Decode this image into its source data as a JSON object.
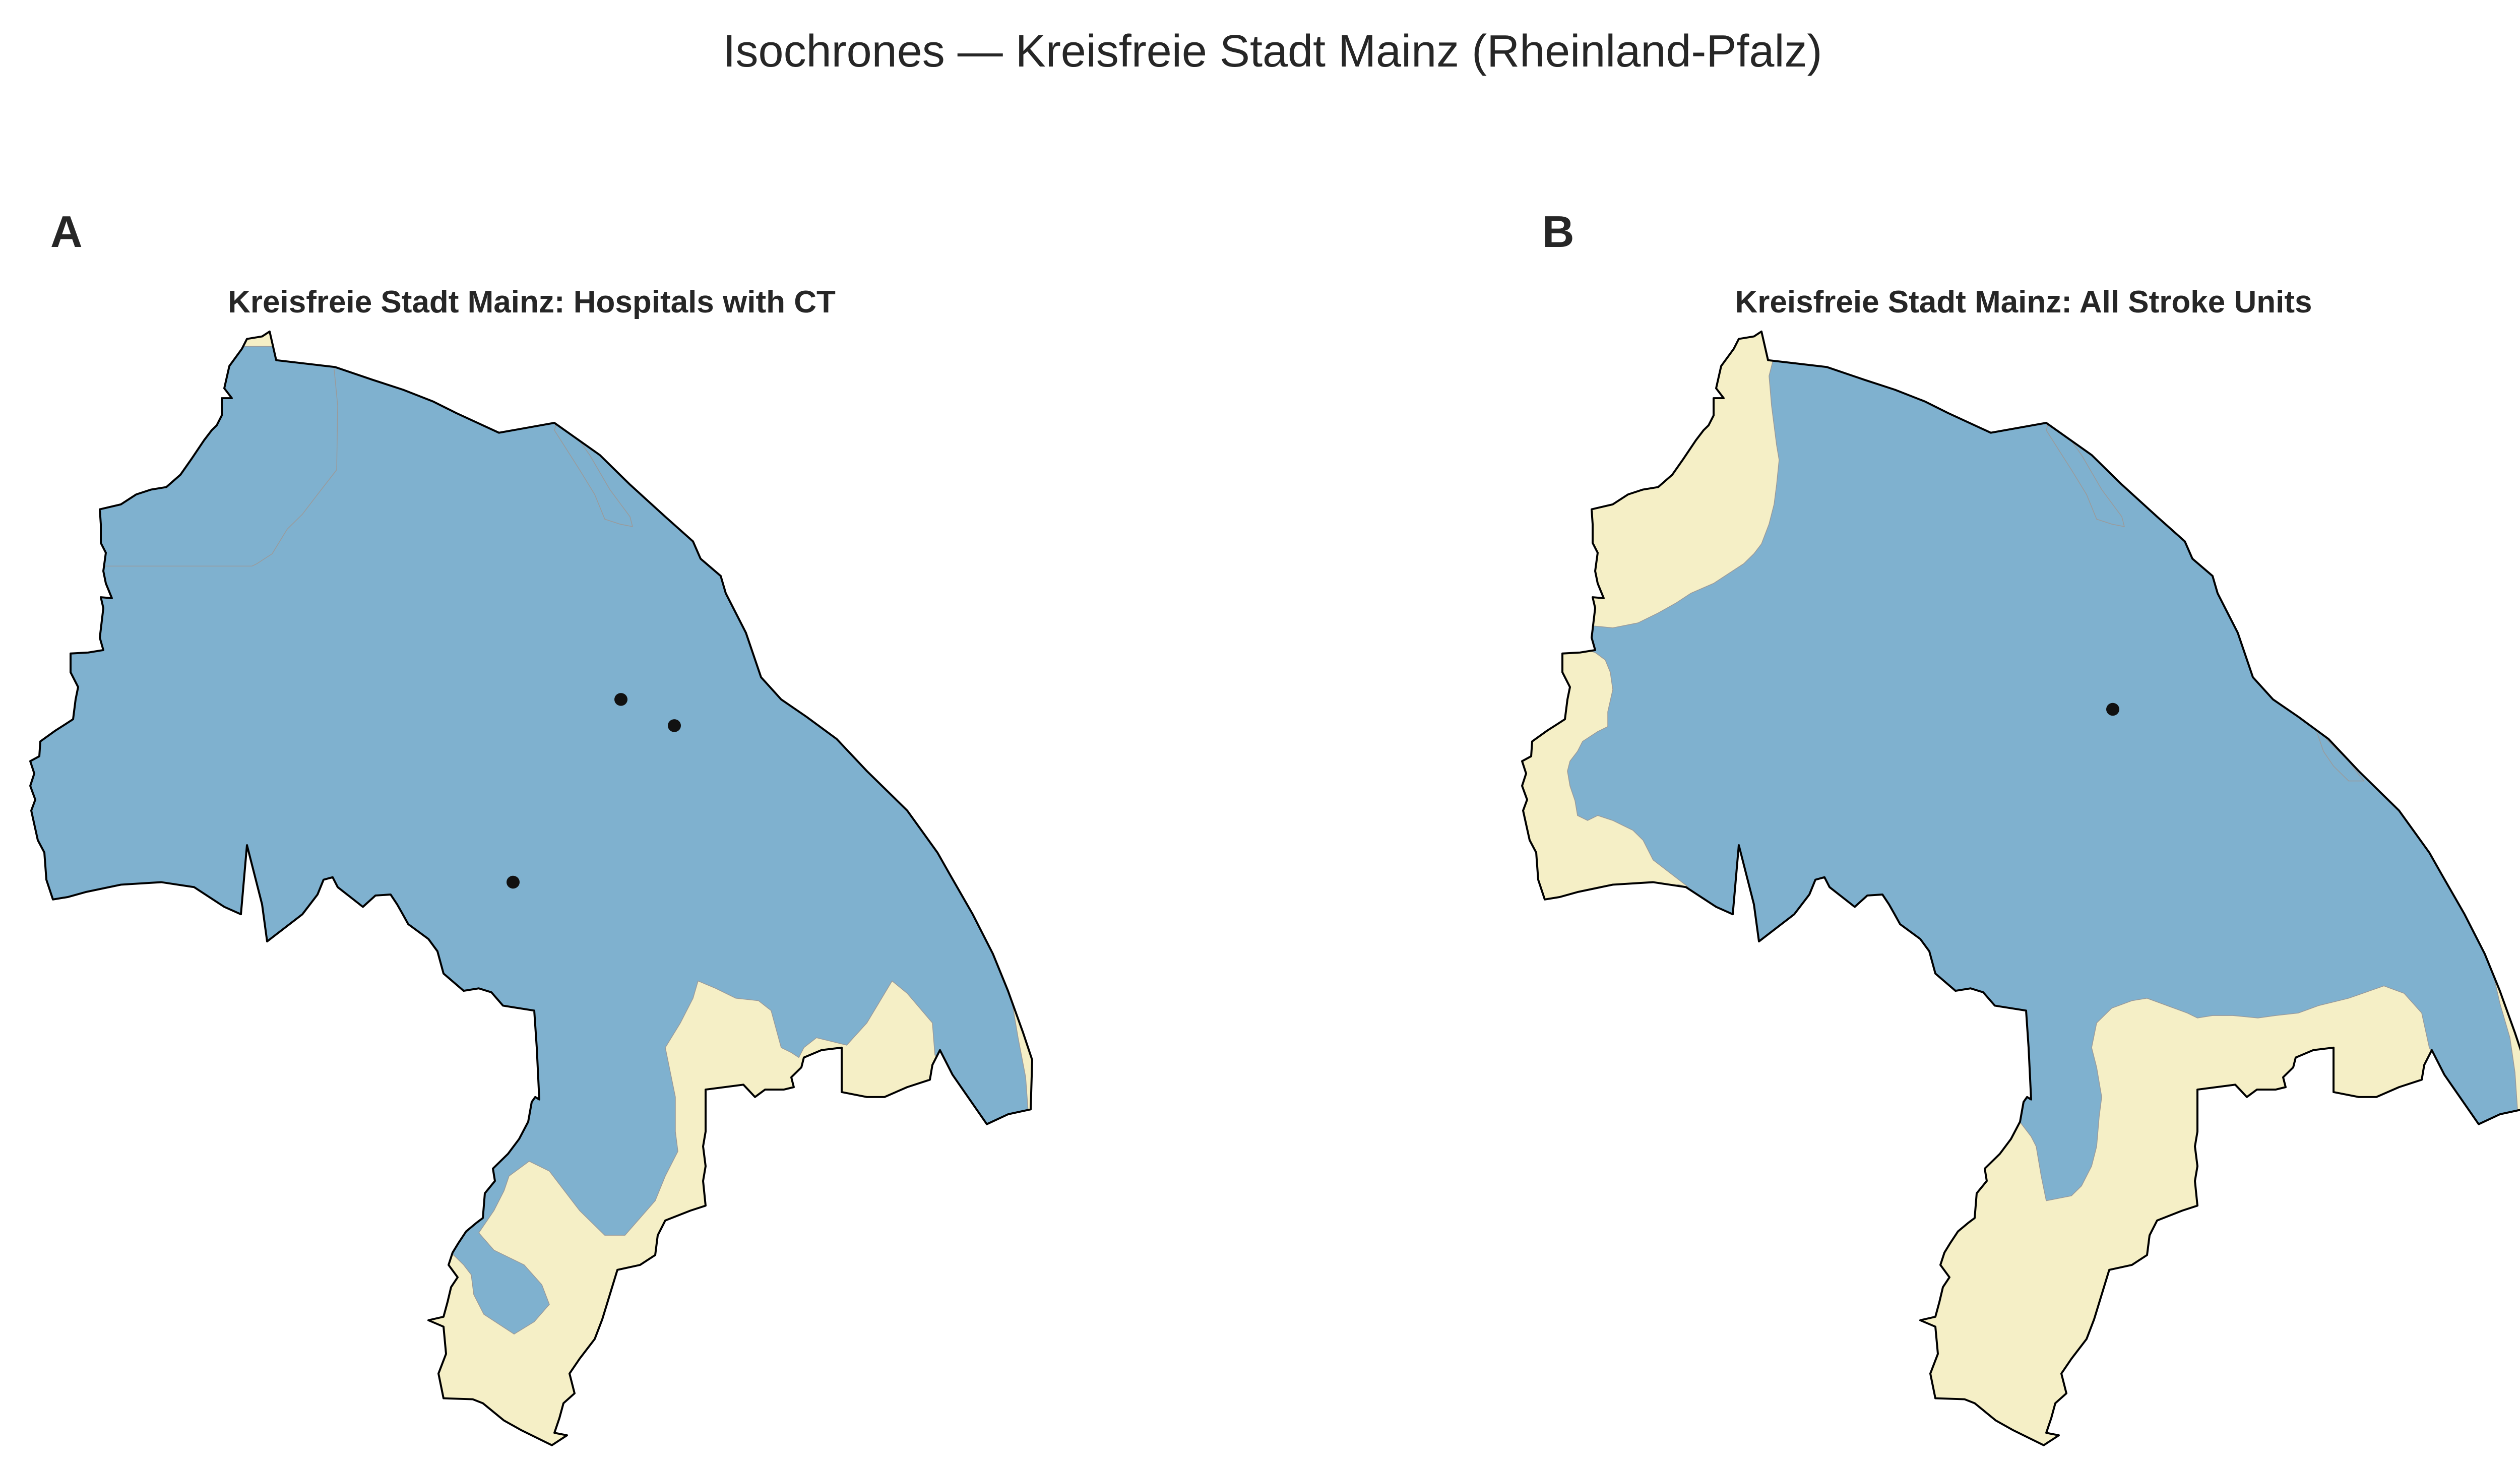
{
  "figure": {
    "title": "Isochrones — Kreisfreie Stadt Mainz (Rheinland-Pfalz)"
  },
  "colors": {
    "covered_area": "#7fb1cf",
    "uncovered_area": "#f5efc6",
    "boundary": "#000000",
    "facility_marker": "#111111"
  },
  "panels": [
    {
      "label": "A",
      "title": "Kreisfreie Stadt Mainz: Hospitals with CT",
      "facility_markers": 3
    },
    {
      "label": "B",
      "title": "Kreisfreie Stadt Mainz: All Stroke Units",
      "facility_markers": 1
    }
  ]
}
